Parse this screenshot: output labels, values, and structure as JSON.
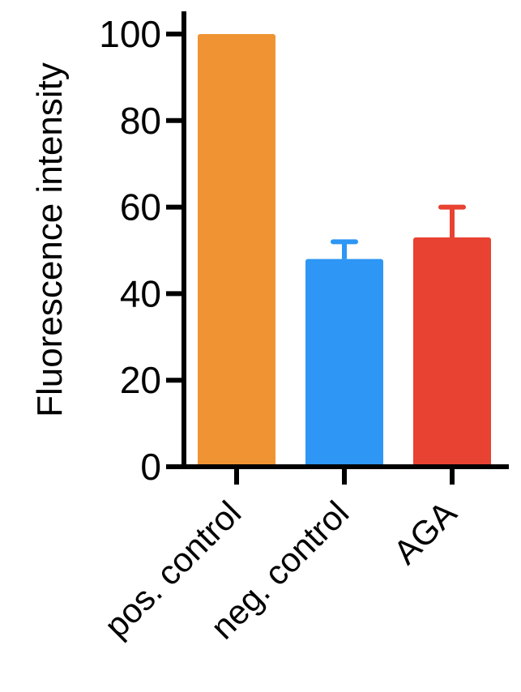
{
  "chart_data": {
    "type": "bar",
    "title": "",
    "xlabel": "",
    "ylabel": "Fluorescence intensity",
    "ylim": [
      0,
      100
    ],
    "yticks": [
      0,
      20,
      40,
      60,
      80,
      100
    ],
    "yticks_text": [
      "0",
      "20",
      "40",
      "60",
      "80",
      "100"
    ],
    "grid": false,
    "legend": "none",
    "categories": [
      "pos. control",
      "neg. control",
      "AGA"
    ],
    "values": [
      100,
      48,
      53
    ],
    "error_upper": [
      0,
      4,
      7
    ],
    "colors": [
      "#f09433",
      "#2e96f5",
      "#e84232"
    ]
  }
}
